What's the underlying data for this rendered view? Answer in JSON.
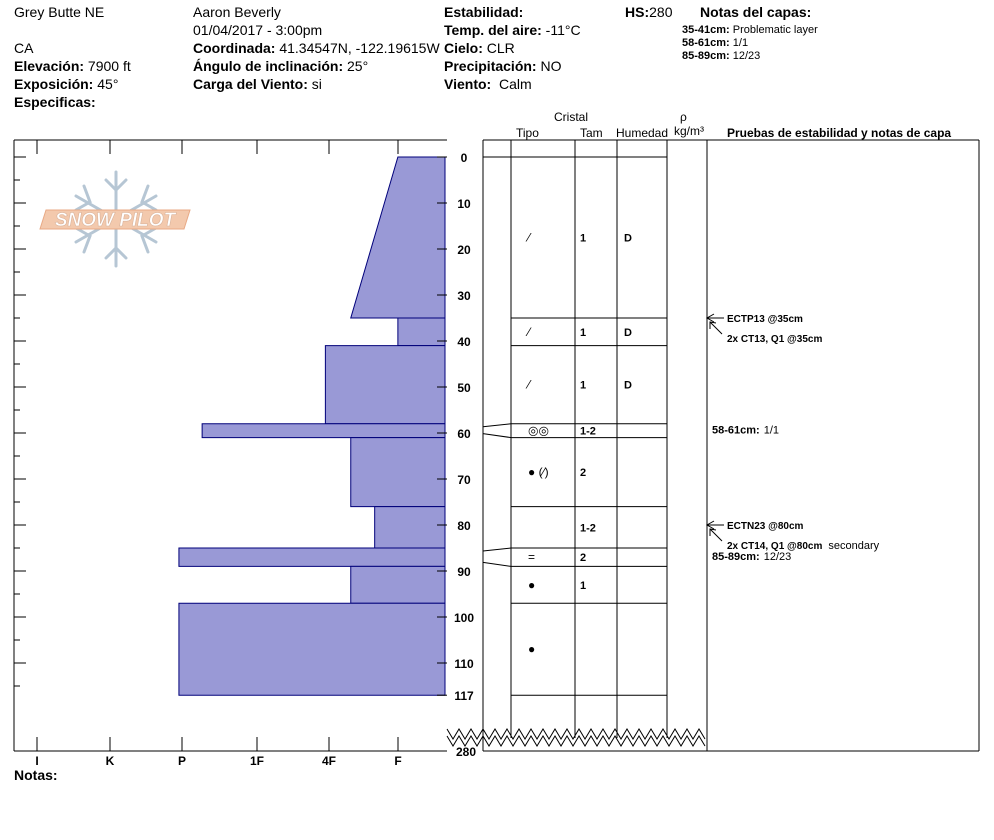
{
  "header": {
    "location": "Grey Butte NE",
    "state": "CA",
    "observer": "Aaron Beverly",
    "datetime": "01/04/2017 - 3:00pm",
    "elevation_label": "Elevación:",
    "elevation_value": "7900 ft",
    "aspect_label": "Exposición:",
    "aspect_value": "45°",
    "specifics_label": "Especificas:",
    "coord_label": "Coordinada:",
    "coord_value": "41.34547N, -122.19615W",
    "slope_label": "Ángulo de inclinación:",
    "slope_value": "25°",
    "wind_load_label": "Carga del Viento:",
    "wind_load_value": "si",
    "stability_label": "Estabilidad:",
    "air_temp_label": "Temp. del aire:",
    "air_temp_value": "-11°C",
    "sky_label": "Cielo:",
    "sky_value": "CLR",
    "precip_label": "Precipitación:",
    "precip_value": "NO",
    "wind_label": "Viento:",
    "wind_value": "Calm",
    "hs_label": "HS:",
    "hs_value": "280",
    "layer_notes_title": "Notas del capas:",
    "layer_notes": [
      {
        "range": "35-41cm:",
        "text": "Problematic layer"
      },
      {
        "range": "58-61cm:",
        "text": "1/1"
      },
      {
        "range": "85-89cm:",
        "text": "12/23"
      }
    ]
  },
  "columns": {
    "cristal": "Cristal",
    "tipo": "Tipo",
    "tam": "Tam",
    "humedad": "Humedad",
    "rho": "ρ",
    "density_unit": "kg/m³",
    "tests": "Pruebas de estabilidad y notas de capa"
  },
  "logo_text": "SNOW PILOT",
  "notes_label": "Notas:",
  "colors": {
    "hardness_fill": "#9999d6",
    "hardness_stroke": "#00007a"
  },
  "chart_data": {
    "type": "bar",
    "orientation": "horizontal",
    "description_axis": "depth",
    "depth_unit": "cm",
    "depth_range": [
      0,
      117
    ],
    "total_depth": 280,
    "depth_ticks": [
      0,
      10,
      20,
      30,
      40,
      50,
      60,
      70,
      80,
      90,
      100,
      110,
      117
    ],
    "bottom_tick_label": "280",
    "hardness_labels": [
      "I",
      "K",
      "P",
      "1F",
      "4F",
      "F"
    ],
    "hardness_scale_note": "hardness index: I=5, K=4, P=3, 1F=2, 4F=1, F=0",
    "layers": [
      {
        "top": 0,
        "bottom": 35,
        "hardness_top": 0.65,
        "hardness_bottom": 1.3
      },
      {
        "top": 35,
        "bottom": 41,
        "hardness_top": 0.65,
        "hardness_bottom": 0.65
      },
      {
        "top": 41,
        "bottom": 58,
        "hardness_top": 1.65,
        "hardness_bottom": 1.65
      },
      {
        "top": 58,
        "bottom": 61,
        "hardness_top": 3.35,
        "hardness_bottom": 3.35
      },
      {
        "top": 61,
        "bottom": 76,
        "hardness_top": 1.3,
        "hardness_bottom": 1.3
      },
      {
        "top": 76,
        "bottom": 85,
        "hardness_top": 0.97,
        "hardness_bottom": 0.97
      },
      {
        "top": 85,
        "bottom": 89,
        "hardness_top": 3.67,
        "hardness_bottom": 3.67
      },
      {
        "top": 89,
        "bottom": 97,
        "hardness_top": 1.3,
        "hardness_bottom": 1.3
      },
      {
        "top": 97,
        "bottom": 117,
        "hardness_top": 3.67,
        "hardness_bottom": 3.67
      }
    ],
    "layer_boundaries": [
      35,
      41,
      58,
      61,
      76,
      85,
      89,
      97,
      117
    ],
    "crystal_rows": [
      {
        "depth": 17.5,
        "type": "decomposing",
        "symbol": "⁄",
        "size": "1",
        "moisture": "D"
      },
      {
        "depth": 38,
        "type": "decomposing",
        "symbol": "⁄",
        "size": "1",
        "moisture": "D"
      },
      {
        "depth": 49.5,
        "type": "decomposing",
        "symbol": "⁄",
        "size": "1",
        "moisture": "D"
      },
      {
        "depth": 59.5,
        "type": "melt-forms",
        "symbol": "◎◎",
        "size": "1-2",
        "moisture": ""
      },
      {
        "depth": 68.5,
        "type": "rounded (decomposing)",
        "symbol": "● (⁄)",
        "size": "2",
        "moisture": ""
      },
      {
        "depth": 80.5,
        "type": "",
        "symbol": "",
        "size": "1-2",
        "moisture": ""
      },
      {
        "depth": 87,
        "type": "crust",
        "symbol": "=",
        "size": "2",
        "moisture": ""
      },
      {
        "depth": 93,
        "type": "rounded",
        "symbol": "●",
        "size": "1",
        "moisture": ""
      },
      {
        "depth": 107,
        "type": "rounded",
        "symbol": "●",
        "size": "",
        "moisture": ""
      }
    ],
    "stability_tests": [
      {
        "depth": 35,
        "lines": [
          {
            "bold": "ECTP13 @35cm",
            "normal": ""
          },
          {
            "bold": "2x CT13, Q1 @35cm",
            "normal": ""
          }
        ]
      },
      {
        "depth": 80,
        "lines": [
          {
            "bold": "ECTN23 @80cm",
            "normal": ""
          },
          {
            "bold": "2x CT14, Q1 @80cm",
            "normal": "secondary"
          }
        ]
      }
    ],
    "layer_annotations": [
      {
        "depth": 59.5,
        "range": "58-61cm:",
        "text": "1/1"
      },
      {
        "depth": 87,
        "range": "85-89cm:",
        "text": "12/23"
      }
    ]
  }
}
